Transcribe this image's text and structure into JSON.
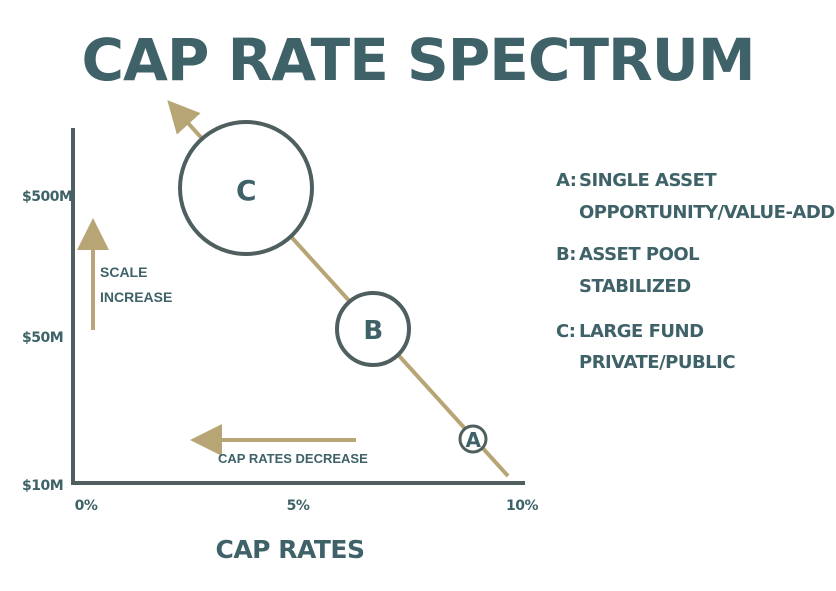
{
  "title": "CAP RATE SPECTRUM",
  "colors": {
    "teal": "#3e6268",
    "gold": "#b8a576",
    "axis": "#4f5f5f"
  },
  "axis": {
    "y_ticks": [
      "$500M",
      "$50M",
      "$10M"
    ],
    "x_ticks": [
      "0%",
      "5%",
      "10%"
    ],
    "x_label": "CAP RATES"
  },
  "annotations": {
    "scale_increase": [
      "SCALE",
      "INCREASE"
    ],
    "cap_rates_decrease": "CAP RATES DECREASE"
  },
  "bubbles": [
    {
      "id": "C",
      "label": "C"
    },
    {
      "id": "B",
      "label": "B"
    },
    {
      "id": "A",
      "label": "A"
    }
  ],
  "legend": [
    {
      "key": "A:",
      "lines": [
        "SINGLE ASSET",
        "OPPORTUNITY/VALUE-ADD"
      ]
    },
    {
      "key": "B:",
      "lines": [
        "ASSET POOL",
        "STABILIZED"
      ]
    },
    {
      "key": "C:",
      "lines": [
        "LARGE FUND",
        "PRIVATE/PUBLIC"
      ]
    }
  ]
}
